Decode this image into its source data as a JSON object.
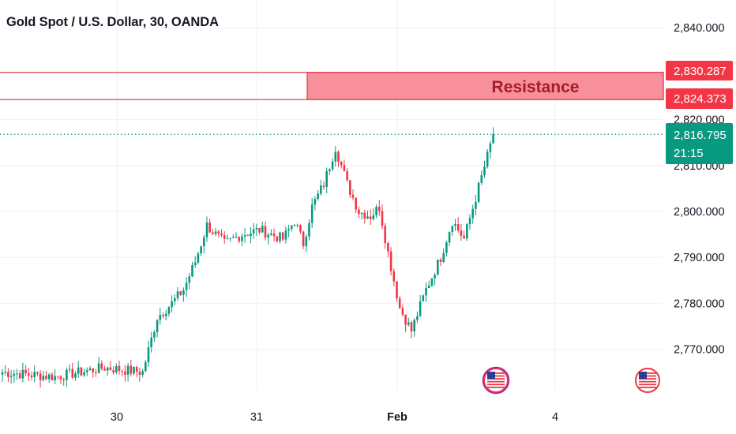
{
  "header": {
    "title": "Gold Spot / U.S. Dollar, 30, OANDA"
  },
  "colors": {
    "up": "#089981",
    "down": "#f23645",
    "grid": "#eef0f3",
    "resistance_fill": "#f7909a",
    "resistance_border": "#e03a48",
    "price_line": "#089981"
  },
  "resistance": {
    "label": "Resistance",
    "top": 2830.287,
    "bottom": 2824.373,
    "top_label": "2,830.287",
    "bottom_label": "2,824.373"
  },
  "price_tag": {
    "price": 2816.795,
    "price_label": "2,816.795",
    "countdown": "21:15"
  },
  "events": {
    "icon": "us-flag-icon",
    "dates": [
      "Feb 3 evening",
      "Feb 4 evening"
    ]
  },
  "chart_data": {
    "type": "candlestick",
    "title": "Gold Spot / U.S. Dollar, 30, OANDA",
    "interval": "30 minutes",
    "xlabel": "",
    "ylabel": "",
    "ylim": [
      2763,
      2843
    ],
    "y_ticks": [
      2770,
      2780,
      2790,
      2800,
      2810,
      2820,
      2840
    ],
    "y_tick_labels": [
      "2,770.000",
      "2,780.000",
      "2,790.000",
      "2,800.000",
      "2,810.000",
      "2,820.000",
      "2,840.000"
    ],
    "x_ticks": [
      "30",
      "31",
      "Feb",
      "4"
    ],
    "grid": true,
    "last_price": 2816.795,
    "close_path": [
      {
        "bar": 0,
        "close": 2765
      },
      {
        "bar": 18,
        "close": 2764
      },
      {
        "bar": 35,
        "close": 2766
      },
      {
        "bar": 48,
        "close": 2765
      },
      {
        "bar": 53,
        "close": 2777
      },
      {
        "bar": 58,
        "close": 2780
      },
      {
        "bar": 62,
        "close": 2783
      },
      {
        "bar": 66,
        "close": 2789
      },
      {
        "bar": 70,
        "close": 2797
      },
      {
        "bar": 76,
        "close": 2793
      },
      {
        "bar": 82,
        "close": 2795
      },
      {
        "bar": 88,
        "close": 2796
      },
      {
        "bar": 96,
        "close": 2794
      },
      {
        "bar": 100,
        "close": 2798
      },
      {
        "bar": 103,
        "close": 2793
      },
      {
        "bar": 106,
        "close": 2801
      },
      {
        "bar": 110,
        "close": 2806
      },
      {
        "bar": 114,
        "close": 2814
      },
      {
        "bar": 118,
        "close": 2806
      },
      {
        "bar": 122,
        "close": 2800
      },
      {
        "bar": 126,
        "close": 2799
      },
      {
        "bar": 129,
        "close": 2801
      },
      {
        "bar": 132,
        "close": 2791
      },
      {
        "bar": 136,
        "close": 2779
      },
      {
        "bar": 140,
        "close": 2774
      },
      {
        "bar": 145,
        "close": 2783
      },
      {
        "bar": 150,
        "close": 2790
      },
      {
        "bar": 154,
        "close": 2798
      },
      {
        "bar": 158,
        "close": 2794
      },
      {
        "bar": 162,
        "close": 2803
      },
      {
        "bar": 166,
        "close": 2812
      },
      {
        "bar": 168,
        "close": 2816.8
      }
    ]
  }
}
